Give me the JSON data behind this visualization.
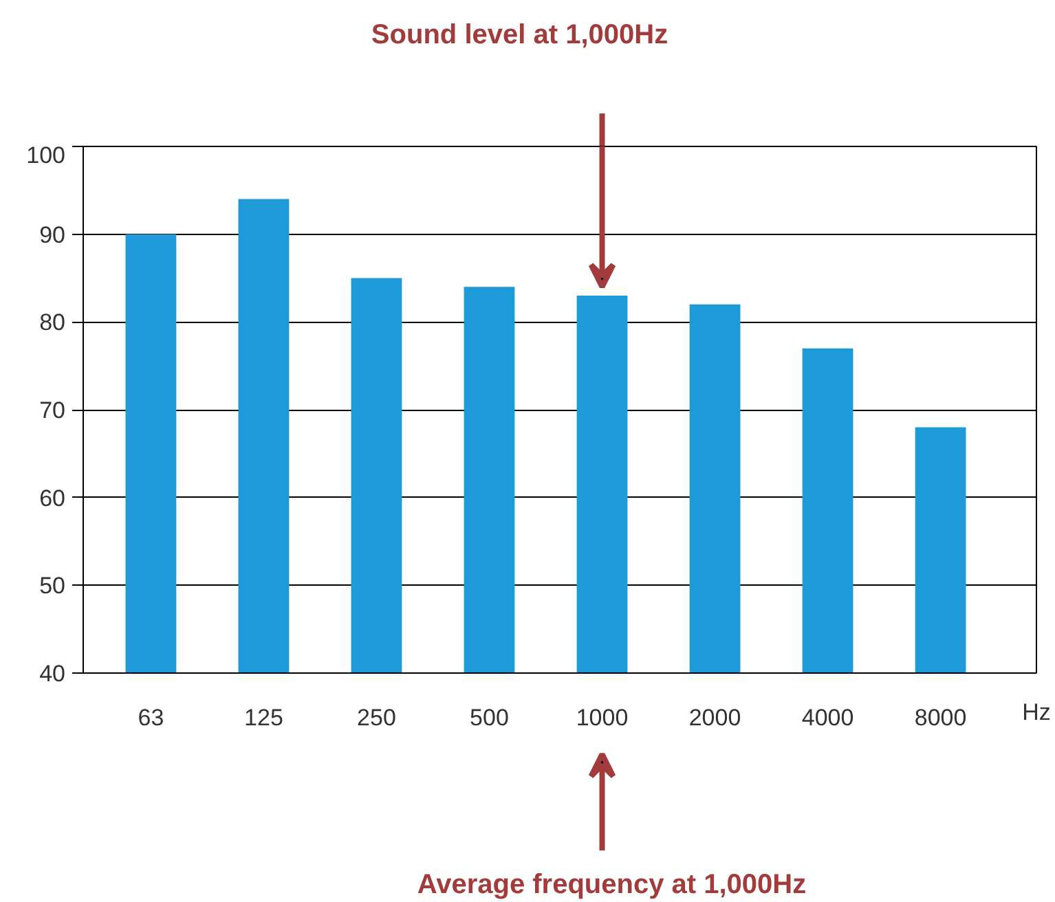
{
  "chart_data": {
    "type": "bar",
    "categories": [
      "63",
      "125",
      "250",
      "500",
      "1000",
      "2000",
      "4000",
      "8000"
    ],
    "values": [
      90,
      94,
      85,
      84,
      83,
      82,
      77,
      68
    ],
    "color": "#1f9ad8",
    "xlabel": "Hz",
    "ylim": [
      40,
      100
    ],
    "yticks": [
      40,
      50,
      60,
      70,
      80,
      90,
      100
    ],
    "grid": "y",
    "annotations": [
      "Sound level at 1,000Hz",
      "Average frequency at 1,000Hz"
    ]
  }
}
